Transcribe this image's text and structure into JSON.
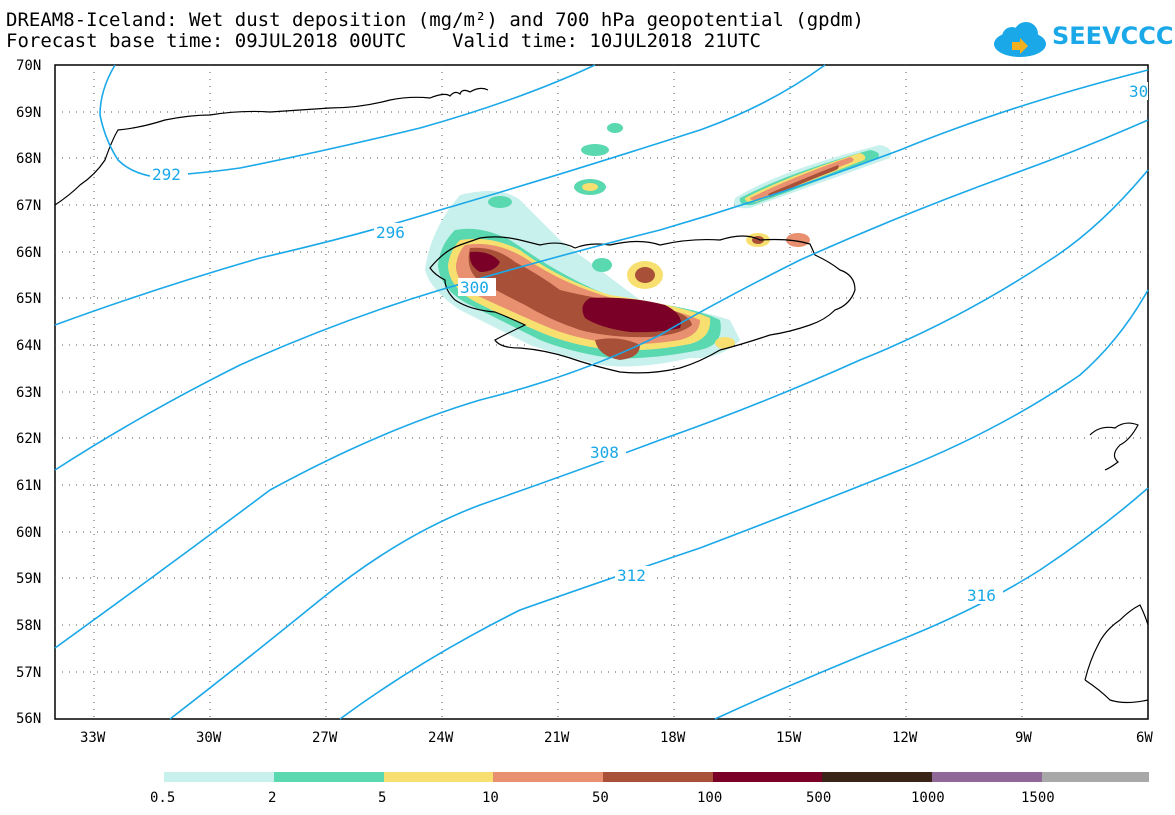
{
  "header": {
    "title_line1": "DREAM8-Iceland: Wet dust deposition (mg/m²) and 700 hPa geopotential (gpdm)",
    "title_line2": "Forecast base time: 09JUL2018 00UTC    Valid time: 10JUL2018 21UTC"
  },
  "logo": {
    "text": "SEEVCCC",
    "icon": "cloud-icon",
    "color": "#1aa8e8"
  },
  "map": {
    "lat_labels": [
      "70N",
      "69N",
      "68N",
      "67N",
      "66N",
      "65N",
      "64N",
      "63N",
      "62N",
      "61N",
      "60N",
      "59N",
      "58N",
      "57N",
      "56N"
    ],
    "lon_labels": [
      "33W",
      "30W",
      "27W",
      "24W",
      "21W",
      "18W",
      "15W",
      "12W",
      "9W",
      "6W"
    ],
    "contour_color": "#1aa8e8",
    "contour_labels": [
      "292",
      "296",
      "300",
      "308",
      "312",
      "316",
      "30"
    ]
  },
  "colorbar": {
    "colors": [
      "#c8f0ec",
      "#5ad8b0",
      "#f8e070",
      "#e89070",
      "#a85038",
      "#7a0028",
      "#3a2418",
      "#906898",
      "#a8a8a8"
    ],
    "labels": [
      "0.5",
      "2",
      "5",
      "10",
      "50",
      "100",
      "500",
      "1000",
      "1500"
    ]
  }
}
